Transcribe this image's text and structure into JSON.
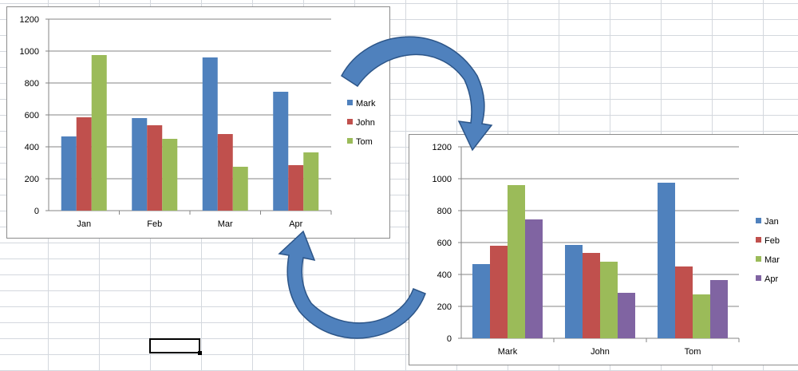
{
  "chart_data": [
    {
      "type": "bar",
      "categories": [
        "Jan",
        "Feb",
        "Mar",
        "Apr"
      ],
      "series": [
        {
          "name": "Mark",
          "values": [
            465,
            580,
            960,
            745
          ],
          "color": "#4f81bd"
        },
        {
          "name": "John",
          "values": [
            585,
            535,
            480,
            285
          ],
          "color": "#c0504d"
        },
        {
          "name": "Tom",
          "values": [
            975,
            450,
            275,
            365
          ],
          "color": "#9bbb59"
        }
      ],
      "yticks": [
        "0",
        "200",
        "400",
        "600",
        "800",
        "1000",
        "1200"
      ],
      "ylim": [
        0,
        1200
      ],
      "grid": true,
      "legend": "right"
    },
    {
      "type": "bar",
      "categories": [
        "Mark",
        "John",
        "Tom"
      ],
      "series": [
        {
          "name": "Jan",
          "values": [
            465,
            585,
            975
          ],
          "color": "#4f81bd"
        },
        {
          "name": "Feb",
          "values": [
            580,
            535,
            450
          ],
          "color": "#c0504d"
        },
        {
          "name": "Mar",
          "values": [
            960,
            480,
            275
          ],
          "color": "#9bbb59"
        },
        {
          "name": "Apr",
          "values": [
            745,
            285,
            365
          ],
          "color": "#8064a2"
        }
      ],
      "yticks": [
        "0",
        "200",
        "400",
        "600",
        "800",
        "1000",
        "1200"
      ],
      "ylim": [
        0,
        1200
      ],
      "grid": true,
      "legend": "right"
    }
  ],
  "colors": {
    "arrow_fill": "#4f81bd",
    "arrow_stroke": "#2c5588"
  }
}
